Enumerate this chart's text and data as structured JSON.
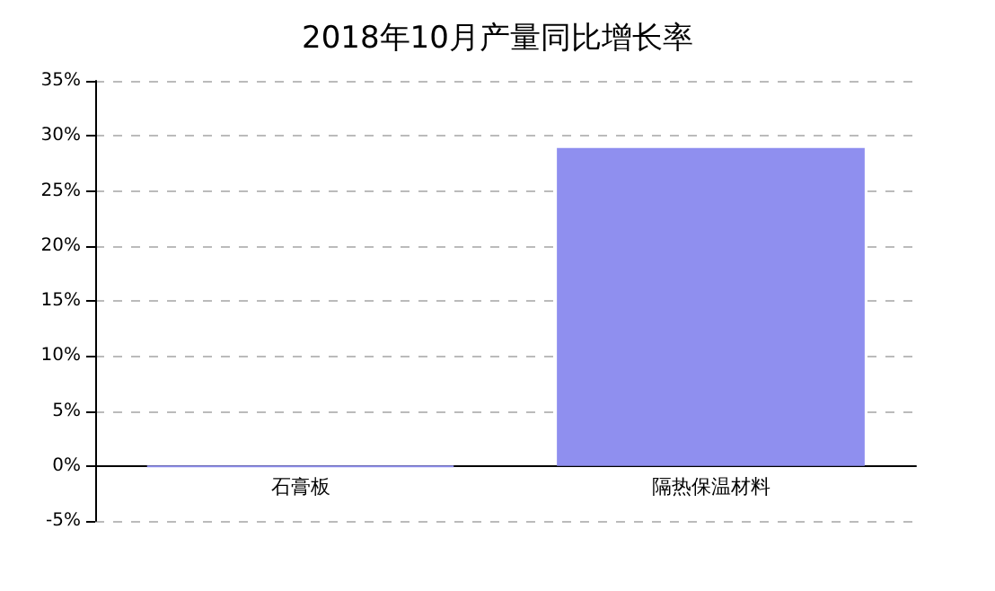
{
  "chart_data": {
    "type": "bar",
    "title": "2018年10月产量同比增长率",
    "categories": [
      "石膏板",
      "隔热保温材料"
    ],
    "series": [
      {
        "color": "#8f8fef",
        "values": [
          -0.1,
          28.9
        ]
      }
    ],
    "ylim": [
      -5,
      35
    ],
    "yticks": [
      {
        "value": -5,
        "label": "-5%"
      },
      {
        "value": 0,
        "label": "0%"
      },
      {
        "value": 5,
        "label": "5%"
      },
      {
        "value": 10,
        "label": "10%"
      },
      {
        "value": 15,
        "label": "15%"
      },
      {
        "value": 20,
        "label": "20%"
      },
      {
        "value": 25,
        "label": "25%"
      },
      {
        "value": 30,
        "label": "30%"
      },
      {
        "value": 35,
        "label": "35%"
      }
    ],
    "grid": "y"
  }
}
